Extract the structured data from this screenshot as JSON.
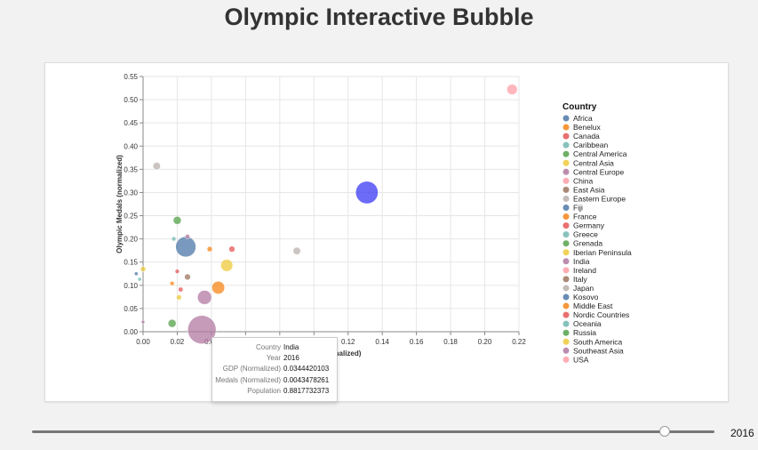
{
  "page": {
    "title": "Olympic Interactive Bubble"
  },
  "chart_data": {
    "type": "scatter",
    "title": "Olympic Interactive Bubble",
    "xlabel": "GDP (Normalized)",
    "ylabel": "Olympic Medals (normalized)",
    "xlim": [
      0,
      0.22
    ],
    "ylim": [
      0,
      0.55
    ],
    "xticks": [
      "0.00",
      "0.02",
      "0.04",
      "0.06",
      "0.08",
      "0.10",
      "0.12",
      "0.14",
      "0.16",
      "0.18",
      "0.20",
      "0.22"
    ],
    "yticks": [
      "0.00",
      "0.05",
      "0.10",
      "0.15",
      "0.20",
      "0.25",
      "0.30",
      "0.35",
      "0.40",
      "0.45",
      "0.50",
      "0.55"
    ],
    "grid": true,
    "legend_title": "Country",
    "legend": [
      {
        "name": "Africa",
        "color": "#4c78a8"
      },
      {
        "name": "Benelux",
        "color": "#f58518"
      },
      {
        "name": "Canada",
        "color": "#e45756"
      },
      {
        "name": "Caribbean",
        "color": "#72b7b2"
      },
      {
        "name": "Central America",
        "color": "#54a24b"
      },
      {
        "name": "Central Asia",
        "color": "#eeca3b"
      },
      {
        "name": "Central Europe",
        "color": "#b279a2"
      },
      {
        "name": "China",
        "color": "#ff9da6"
      },
      {
        "name": "East Asia",
        "color": "#9d755d"
      },
      {
        "name": "Eastern Europe",
        "color": "#bab0ac"
      },
      {
        "name": "Fiji",
        "color": "#4c78a8"
      },
      {
        "name": "France",
        "color": "#f58518"
      },
      {
        "name": "Germany",
        "color": "#e45756"
      },
      {
        "name": "Greece",
        "color": "#72b7b2"
      },
      {
        "name": "Grenada",
        "color": "#54a24b"
      },
      {
        "name": "Iberian Peninsula",
        "color": "#eeca3b"
      },
      {
        "name": "India",
        "color": "#b279a2"
      },
      {
        "name": "Ireland",
        "color": "#ff9da6"
      },
      {
        "name": "Italy",
        "color": "#9d755d"
      },
      {
        "name": "Japan",
        "color": "#bab0ac"
      },
      {
        "name": "Kosovo",
        "color": "#4c78a8"
      },
      {
        "name": "Middle East",
        "color": "#f58518"
      },
      {
        "name": "Nordic Countries",
        "color": "#e45756"
      },
      {
        "name": "Oceania",
        "color": "#72b7b2"
      },
      {
        "name": "Russia",
        "color": "#54a24b"
      },
      {
        "name": "South America",
        "color": "#eeca3b"
      },
      {
        "name": "Southeast Asia",
        "color": "#b279a2"
      },
      {
        "name": "USA",
        "color": "#ff9da6"
      }
    ],
    "points": [
      {
        "x": 0.216,
        "y": 0.522,
        "pop": 0.12,
        "color": "#ff9da6"
      },
      {
        "x": 0.131,
        "y": 0.3,
        "pop": 0.55,
        "color": "#3a3af5"
      },
      {
        "x": 0.008,
        "y": 0.357,
        "pop": 0.06,
        "color": "#bab0ac"
      },
      {
        "x": 0.09,
        "y": 0.174,
        "pop": 0.06,
        "color": "#bab0ac"
      },
      {
        "x": 0.02,
        "y": 0.24,
        "pop": 0.07,
        "color": "#54a24b"
      },
      {
        "x": 0.026,
        "y": 0.205,
        "pop": 0.025,
        "color": "#b279a2"
      },
      {
        "x": 0.018,
        "y": 0.2,
        "pop": 0.02,
        "color": "#72b7b2"
      },
      {
        "x": 0.025,
        "y": 0.183,
        "pop": 0.45,
        "color": "#4c78a8"
      },
      {
        "x": 0.039,
        "y": 0.178,
        "pop": 0.03,
        "color": "#f58518"
      },
      {
        "x": 0.052,
        "y": 0.178,
        "pop": 0.04,
        "color": "#e45756"
      },
      {
        "x": 0.049,
        "y": 0.143,
        "pop": 0.16,
        "color": "#eeca3b"
      },
      {
        "x": 0.0,
        "y": 0.135,
        "pop": 0.03,
        "color": "#eeca3b"
      },
      {
        "x": 0.02,
        "y": 0.13,
        "pop": 0.02,
        "color": "#e45756"
      },
      {
        "x": -0.004,
        "y": 0.125,
        "pop": 0.015,
        "color": "#4c78a8"
      },
      {
        "x": 0.026,
        "y": 0.118,
        "pop": 0.04,
        "color": "#9d755d"
      },
      {
        "x": -0.002,
        "y": 0.113,
        "pop": 0.015,
        "color": "#72b7b2"
      },
      {
        "x": 0.017,
        "y": 0.104,
        "pop": 0.02,
        "color": "#f58518"
      },
      {
        "x": 0.044,
        "y": 0.095,
        "pop": 0.18,
        "color": "#f58518"
      },
      {
        "x": 0.022,
        "y": 0.091,
        "pop": 0.025,
        "color": "#e45756"
      },
      {
        "x": 0.036,
        "y": 0.074,
        "pop": 0.22,
        "color": "#b279a2"
      },
      {
        "x": 0.021,
        "y": 0.074,
        "pop": 0.03,
        "color": "#eeca3b"
      },
      {
        "x": 0.0,
        "y": 0.021,
        "pop": 0.01,
        "color": "#b279a2"
      },
      {
        "x": 0.017,
        "y": 0.018,
        "pop": 0.07,
        "color": "#54a24b"
      },
      {
        "x": 0.034442,
        "y": 0.004348,
        "pop": 0.8818,
        "color": "#b279a2"
      }
    ]
  },
  "tooltip": [
    {
      "k": "Country",
      "v": "India"
    },
    {
      "k": "Year",
      "v": "2016"
    },
    {
      "k": "GDP (Normalized)",
      "v": "0.0344420103"
    },
    {
      "k": "Medals (Normalized)",
      "v": "0.0043478261"
    },
    {
      "k": "Population",
      "v": "0.8817732373"
    }
  ],
  "slider": {
    "value": "2016",
    "fraction": 0.927
  }
}
